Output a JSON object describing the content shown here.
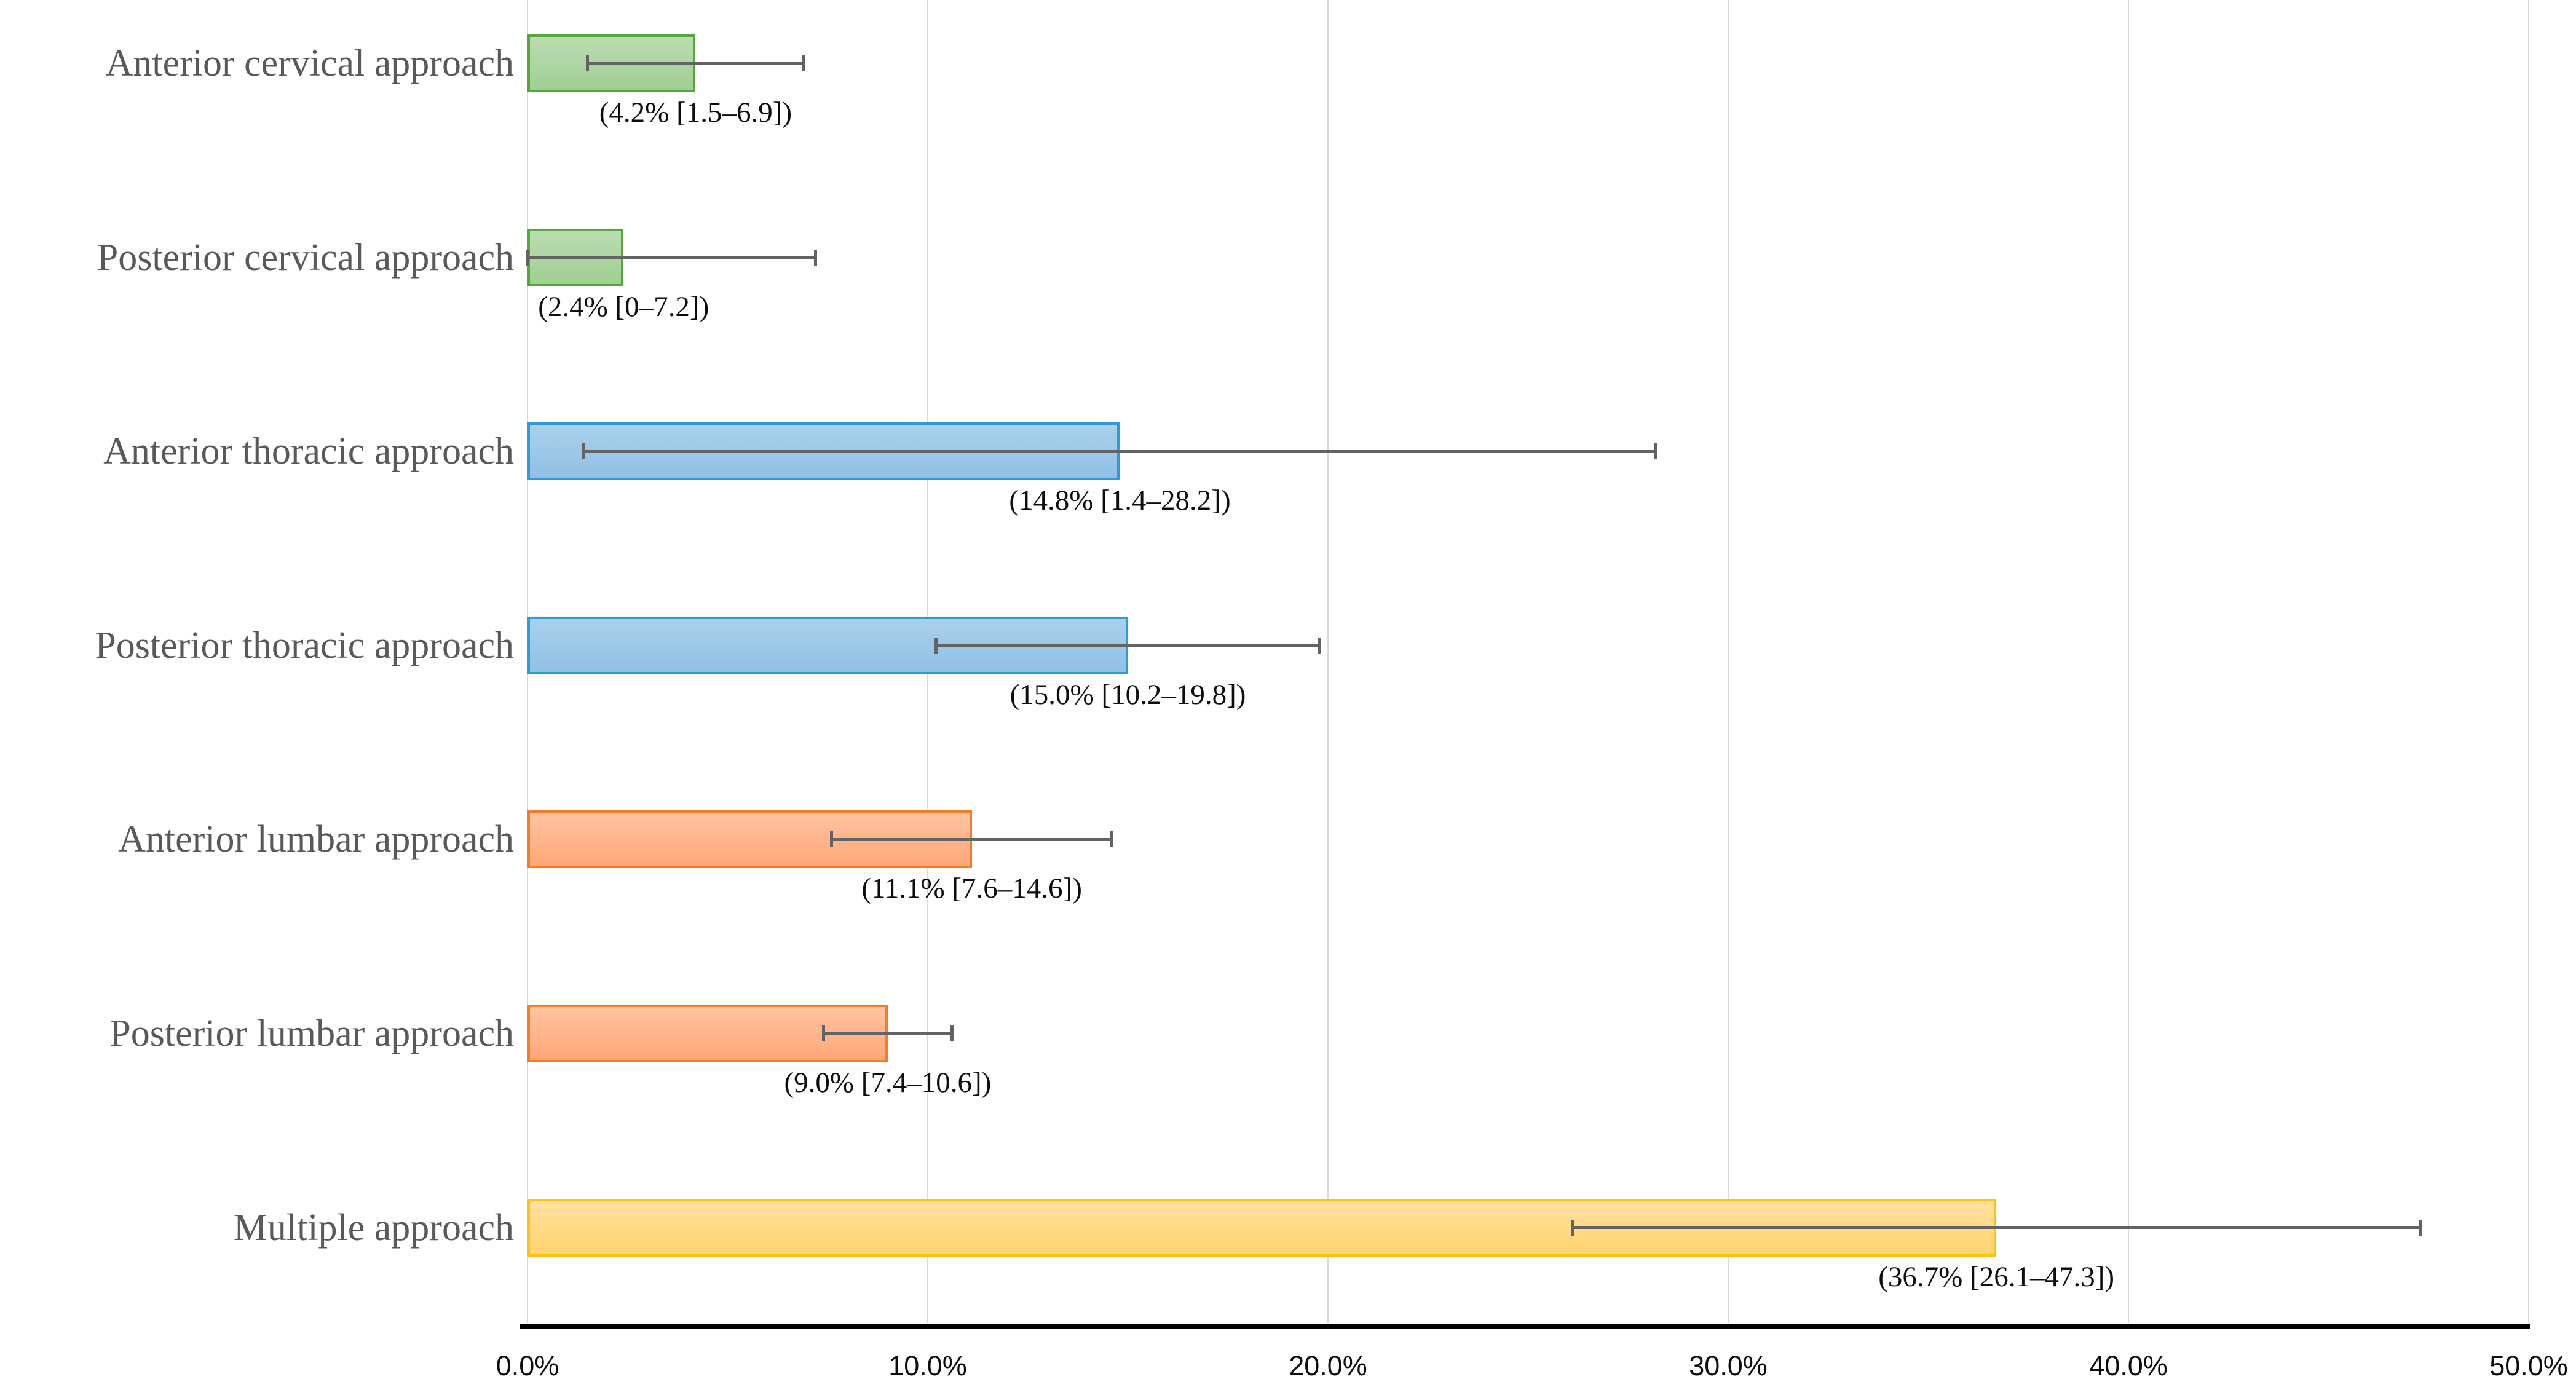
{
  "chart_data": {
    "type": "bar",
    "orientation": "horizontal",
    "title": "",
    "xlabel": "",
    "ylabel": "",
    "xlim": [
      0,
      50
    ],
    "grid": "vertical",
    "legend": "none",
    "categories": [
      "Anterior cervical approach",
      "Posterior cervical approach",
      "Anterior thoracic approach",
      "Posterior thoracic approach",
      "Anterior lumbar approach",
      "Posterior lumbar approach",
      "Multiple approach"
    ],
    "values": [
      4.2,
      2.4,
      14.8,
      15.0,
      11.1,
      9.0,
      36.7
    ],
    "ci_low": [
      1.5,
      0,
      1.4,
      10.2,
      7.6,
      7.4,
      26.1
    ],
    "ci_high": [
      6.9,
      7.2,
      28.2,
      19.8,
      14.6,
      10.6,
      47.3
    ],
    "data_labels": [
      "(4.2% [1.5–6.9])",
      "(2.4% [0–7.2])",
      "(14.8% [1.4–28.2])",
      "(15.0% [10.2–19.8])",
      "(11.1% [7.6–14.6])",
      "(9.0% [7.4–10.6])",
      "(36.7% [26.1–47.3])"
    ],
    "bar_styles": [
      {
        "fill_top": "#bcdcb1",
        "fill_bottom": "#a0cf94",
        "border": "#55a73c"
      },
      {
        "fill_top": "#bcdcb1",
        "fill_bottom": "#a0cf94",
        "border": "#55a73c"
      },
      {
        "fill_top": "#abd0ec",
        "fill_bottom": "#8fc0e5",
        "border": "#2e9bd5"
      },
      {
        "fill_top": "#abd0ec",
        "fill_bottom": "#8fc0e5",
        "border": "#2e9bd5"
      },
      {
        "fill_top": "#ffc4a1",
        "fill_bottom": "#ffa678",
        "border": "#f07e26"
      },
      {
        "fill_top": "#ffc4a1",
        "fill_bottom": "#ffa678",
        "border": "#f07e26"
      },
      {
        "fill_top": "#ffe1a0",
        "fill_bottom": "#ffd36e",
        "border": "#ffc114"
      }
    ],
    "x_tick_values": [
      0,
      10,
      20,
      30,
      40,
      50
    ],
    "x_tick_labels": [
      "0.0%",
      "10.0%",
      "20.0%",
      "30.0%",
      "40.0%",
      "50.0%"
    ],
    "colors": {
      "gridline": "#d9d9d9",
      "axis": "#000000",
      "error_bar": "#636363",
      "category_text": "#595959",
      "data_label_text": "#0d0d0d",
      "tick_text": "#0d0d0d",
      "background": "#ffffff"
    }
  }
}
